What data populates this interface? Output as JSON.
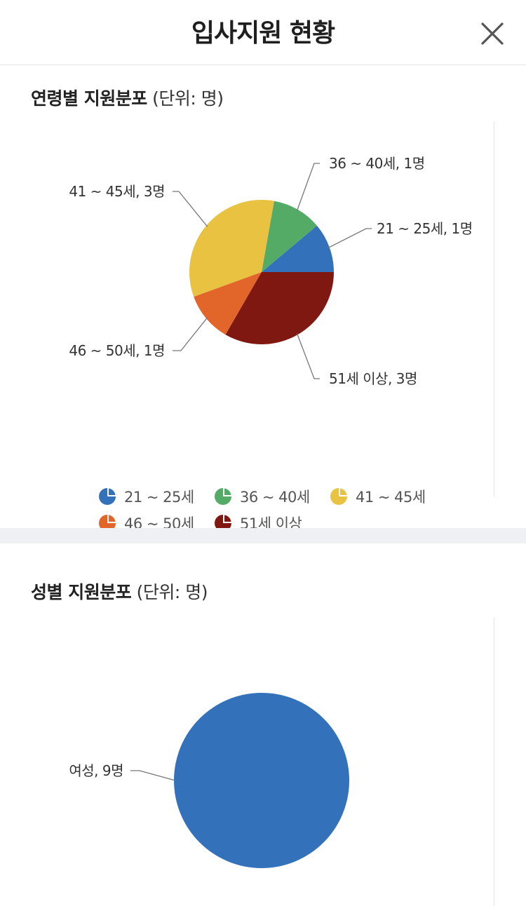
{
  "header": {
    "title": "입사지원 현황"
  },
  "age_section": {
    "title": "연령별 지원분포",
    "unit": "(단위: 명)"
  },
  "gender_section": {
    "title": "성별 지원분포",
    "unit": "(단위: 명)"
  },
  "chart_data": [
    {
      "type": "pie",
      "title": "연령별 지원분포",
      "unit": "명",
      "categories": [
        "21 ~ 25세",
        "36 ~ 40세",
        "41 ~ 45세",
        "46 ~ 50세",
        "51세 이상"
      ],
      "values": [
        1,
        1,
        3,
        1,
        3
      ],
      "colors": [
        "#3372bb",
        "#53ab66",
        "#e8c240",
        "#e2652a",
        "#801812"
      ],
      "data_labels": [
        "21 ~ 25세, 1명",
        "36 ~ 40세, 1명",
        "41 ~ 45세, 3명",
        "46 ~ 50세, 1명",
        "51세 이상, 3명"
      ],
      "legend": "bottom"
    },
    {
      "type": "pie",
      "title": "성별 지원분포",
      "unit": "명",
      "categories": [
        "여성"
      ],
      "values": [
        9
      ],
      "colors": [
        "#3372bb"
      ],
      "data_labels": [
        "여성, 9명"
      ],
      "legend": "none"
    }
  ]
}
